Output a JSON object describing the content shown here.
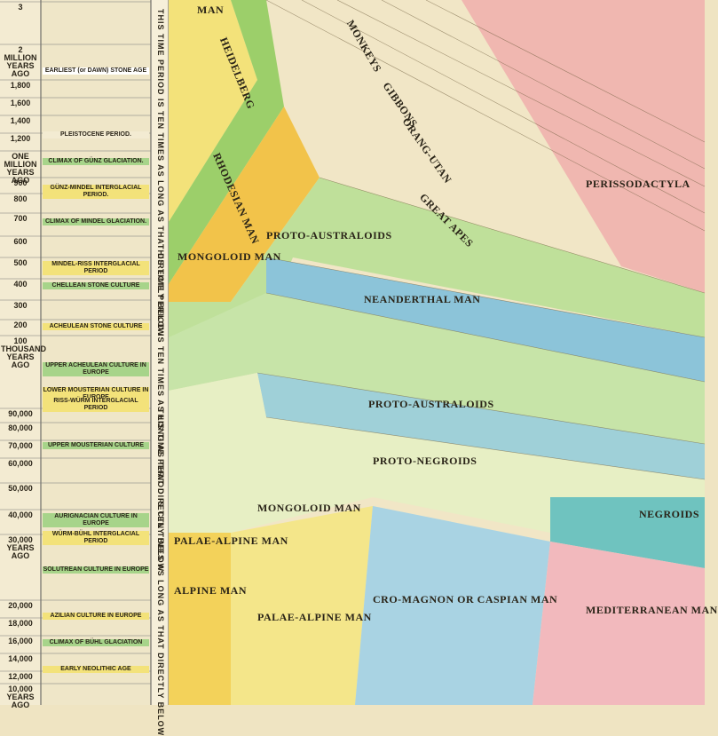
{
  "time_scale": {
    "labels": [
      "3",
      "2 MILLION YEARS AGO",
      "1,800",
      "1,600",
      "1,400",
      "1,200",
      "ONE MILLION YEARS AGO",
      "900",
      "800",
      "700",
      "600",
      "500",
      "400",
      "300",
      "200",
      "100 THOUSAND YEARS AGO",
      "90,000",
      "80,000",
      "70,000",
      "60,000",
      "50,000",
      "40,000",
      "30,000 YEARS AGO",
      "20,000",
      "18,000",
      "16,000",
      "14,000",
      "12,000",
      "10,000 YEARS AGO"
    ]
  },
  "periods": [
    "EARLIEST (or DAWN) STONE AGE",
    "PLEISTOCENE PERIOD.",
    "CLIMAX OF GÜNZ GLACIATION.",
    "GÜNZ-MINDEL INTERGLACIAL PERIOD.",
    "CLIMAX OF MINDEL GLACIATION.",
    "MINDEL-RISS INTERGLACIAL PERIOD",
    "CHELLEAN STONE CULTURE",
    "ACHEULEAN STONE CULTURE",
    "UPPER ACHEULEAN CULTURE IN EUROPE",
    "LOWER MOUSTERIAN CULTURE IN EUROPE",
    "RISS-WÜRM INTERGLACIAL PERIOD",
    "UPPER MOUSTERIAN CULTURE",
    "AURIGNACIAN CULTURE IN EUROPE",
    "WÜRM-BÜHL INTERGLACIAL PERIOD",
    "SOLUTREAN CULTURE IN EUROPE",
    "AZILIAN CULTURE IN EUROPE",
    "CLIMAX OF BÜHL GLACIATION",
    "EARLY NEOLITHIC AGE"
  ],
  "side_notes": [
    "THIS TIME PERIOD IS TEN TIMES AS LONG AS THAT DIRECTLY BELOW",
    "THIS TIME PERIOD IS TEN TIMES AS LONG AS THAT DIRECTLY BELOW",
    "THIS TIME PERIOD IS TEN TIMES AS LONG AS THAT DIRECTLY BELOW"
  ],
  "bands": [
    "MAN",
    "HEIDELBERG",
    "RHODESIAN MAN",
    "MONGOLOID MAN",
    "PROTO-AUSTRALOIDS",
    "NEANDERTHAL MAN",
    "GREAT APES",
    "GIBBONS",
    "MONKEYS",
    "ORANG-UTAN",
    "PERISSODACTYLA",
    "PROTO-AUSTRALOIDS",
    "PROTO-NEGROIDS",
    "MONGOLOID MAN",
    "PALAE-ALPINE MAN",
    "ALPINE MAN",
    "PALAE-ALPINE MAN",
    "CRO-MAGNON OR CASPIAN MAN",
    "MEDITERRANEAN MAN",
    "NEGROIDS"
  ]
}
